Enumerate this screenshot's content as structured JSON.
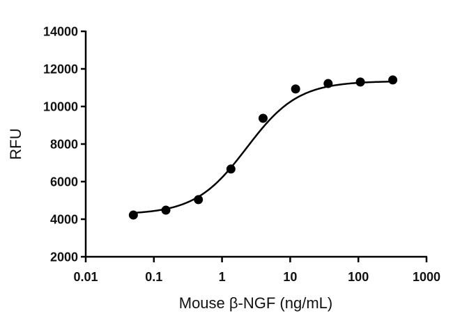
{
  "chart_data": {
    "type": "scatter",
    "title": "",
    "xlabel": "Mouse β-NGF (ng/mL)",
    "ylabel": "RFU",
    "xscale": "log",
    "xlim": [
      0.01,
      1000
    ],
    "ylim": [
      2000,
      14000
    ],
    "x_ticks": [
      "0.01",
      "0.1",
      "1",
      "10",
      "100",
      "1000"
    ],
    "y_ticks": [
      "2000",
      "4000",
      "6000",
      "8000",
      "10000",
      "12000",
      "14000"
    ],
    "grid": false,
    "legend": null,
    "series": [
      {
        "name": "Mouse β-NGF",
        "marker": "filled-circle",
        "fit": "sigmoidal dose-response curve",
        "x": [
          0.05,
          0.15,
          0.45,
          1.35,
          4.0,
          12.0,
          36,
          107,
          320
        ],
        "y": [
          4220,
          4480,
          5040,
          6670,
          9370,
          10930,
          11220,
          11300,
          11410
        ]
      }
    ]
  },
  "colors": {
    "axis": "#000000",
    "marker": "#000000",
    "curve": "#000000"
  }
}
